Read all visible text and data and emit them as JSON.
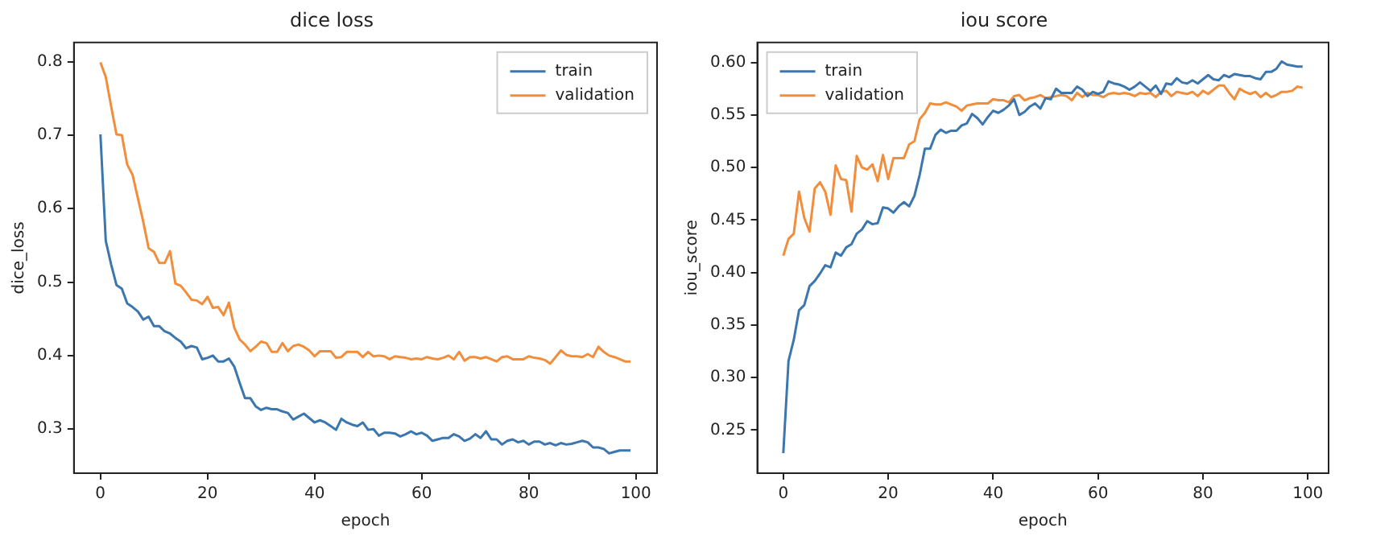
{
  "chart_data": [
    {
      "type": "line",
      "title": "dice loss",
      "xlabel": "epoch",
      "ylabel": "dice_loss",
      "legend": "top right",
      "grid": false,
      "marker": "none",
      "line_style": "solid",
      "x": [
        0,
        1,
        2,
        3,
        4,
        5,
        6,
        7,
        8,
        9,
        10,
        11,
        12,
        13,
        14,
        15,
        16,
        17,
        18,
        19,
        20,
        21,
        22,
        23,
        24,
        25,
        26,
        27,
        28,
        29,
        30,
        31,
        32,
        33,
        34,
        35,
        36,
        37,
        38,
        39,
        40,
        41,
        42,
        43,
        44,
        45,
        46,
        47,
        48,
        49,
        50,
        51,
        52,
        53,
        54,
        55,
        56,
        57,
        58,
        59,
        60,
        61,
        62,
        63,
        64,
        65,
        66,
        67,
        68,
        69,
        70,
        71,
        72,
        73,
        74,
        75,
        76,
        77,
        78,
        79,
        80,
        81,
        82,
        83,
        84,
        85,
        86,
        87,
        88,
        89,
        90,
        91,
        92,
        93,
        94,
        95,
        96,
        97,
        98,
        99
      ],
      "xlim": [
        -4.95,
        103.95
      ],
      "xticks": [
        0,
        20,
        40,
        60,
        80,
        100
      ],
      "ylim": [
        0.24,
        0.826
      ],
      "yticks": [
        0.3,
        0.4,
        0.5,
        0.6,
        0.7,
        0.8
      ],
      "series": [
        {
          "name": "train",
          "color": "#3c76af",
          "values": [
            0.701,
            0.556,
            0.524,
            0.496,
            0.491,
            0.471,
            0.466,
            0.46,
            0.449,
            0.453,
            0.44,
            0.44,
            0.433,
            0.43,
            0.424,
            0.419,
            0.41,
            0.413,
            0.411,
            0.395,
            0.397,
            0.4,
            0.392,
            0.392,
            0.396,
            0.385,
            0.363,
            0.342,
            0.342,
            0.331,
            0.326,
            0.329,
            0.327,
            0.327,
            0.324,
            0.322,
            0.313,
            0.317,
            0.321,
            0.315,
            0.309,
            0.312,
            0.309,
            0.304,
            0.299,
            0.314,
            0.309,
            0.306,
            0.304,
            0.309,
            0.299,
            0.3,
            0.291,
            0.295,
            0.295,
            0.294,
            0.29,
            0.293,
            0.297,
            0.293,
            0.295,
            0.291,
            0.284,
            0.286,
            0.288,
            0.288,
            0.293,
            0.29,
            0.284,
            0.287,
            0.293,
            0.288,
            0.297,
            0.286,
            0.286,
            0.279,
            0.284,
            0.286,
            0.282,
            0.284,
            0.279,
            0.283,
            0.283,
            0.279,
            0.281,
            0.278,
            0.281,
            0.279,
            0.28,
            0.282,
            0.284,
            0.282,
            0.275,
            0.275,
            0.273,
            0.267,
            0.269,
            0.271,
            0.271,
            0.271
          ]
        },
        {
          "name": "validation",
          "color": "#f28e3b",
          "values": [
            0.799,
            0.779,
            0.739,
            0.701,
            0.7,
            0.66,
            0.646,
            0.614,
            0.582,
            0.546,
            0.541,
            0.526,
            0.526,
            0.542,
            0.498,
            0.495,
            0.486,
            0.476,
            0.475,
            0.47,
            0.48,
            0.465,
            0.466,
            0.455,
            0.472,
            0.438,
            0.422,
            0.415,
            0.406,
            0.412,
            0.419,
            0.417,
            0.405,
            0.405,
            0.417,
            0.406,
            0.413,
            0.415,
            0.412,
            0.407,
            0.399,
            0.406,
            0.406,
            0.406,
            0.397,
            0.398,
            0.405,
            0.405,
            0.405,
            0.398,
            0.405,
            0.399,
            0.4,
            0.399,
            0.395,
            0.399,
            0.398,
            0.397,
            0.395,
            0.396,
            0.395,
            0.398,
            0.396,
            0.395,
            0.397,
            0.4,
            0.395,
            0.405,
            0.393,
            0.398,
            0.398,
            0.396,
            0.398,
            0.395,
            0.392,
            0.398,
            0.399,
            0.395,
            0.395,
            0.395,
            0.399,
            0.397,
            0.396,
            0.394,
            0.389,
            0.398,
            0.407,
            0.401,
            0.399,
            0.399,
            0.398,
            0.402,
            0.398,
            0.412,
            0.405,
            0.4,
            0.398,
            0.395,
            0.392,
            0.392
          ]
        }
      ]
    },
    {
      "type": "line",
      "title": "iou score",
      "xlabel": "epoch",
      "ylabel": "iou_score",
      "legend": "top left",
      "grid": false,
      "marker": "none",
      "line_style": "solid",
      "x": [
        0,
        1,
        2,
        3,
        4,
        5,
        6,
        7,
        8,
        9,
        10,
        11,
        12,
        13,
        14,
        15,
        16,
        17,
        18,
        19,
        20,
        21,
        22,
        23,
        24,
        25,
        26,
        27,
        28,
        29,
        30,
        31,
        32,
        33,
        34,
        35,
        36,
        37,
        38,
        39,
        40,
        41,
        42,
        43,
        44,
        45,
        46,
        47,
        48,
        49,
        50,
        51,
        52,
        53,
        54,
        55,
        56,
        57,
        58,
        59,
        60,
        61,
        62,
        63,
        64,
        65,
        66,
        67,
        68,
        69,
        70,
        71,
        72,
        73,
        74,
        75,
        76,
        77,
        78,
        79,
        80,
        81,
        82,
        83,
        84,
        85,
        86,
        87,
        88,
        89,
        90,
        91,
        92,
        93,
        94,
        95,
        96,
        97,
        98,
        99
      ],
      "xlim": [
        -4.95,
        103.95
      ],
      "xticks": [
        0,
        20,
        40,
        60,
        80,
        100
      ],
      "ylim": [
        0.209,
        0.619
      ],
      "yticks": [
        0.25,
        {
          "value": 0.3,
          "label": "0.30"
        },
        0.35,
        {
          "value": 0.4,
          "label": "0.40"
        },
        0.45,
        {
          "value": 0.5,
          "label": "0.50"
        },
        0.55,
        {
          "value": 0.6,
          "label": "0.60"
        }
      ],
      "series": [
        {
          "name": "train",
          "color": "#3c76af",
          "values": [
            0.228,
            0.316,
            0.336,
            0.364,
            0.369,
            0.387,
            0.392,
            0.399,
            0.407,
            0.405,
            0.419,
            0.416,
            0.424,
            0.427,
            0.437,
            0.441,
            0.449,
            0.446,
            0.447,
            0.462,
            0.461,
            0.457,
            0.463,
            0.467,
            0.463,
            0.473,
            0.493,
            0.518,
            0.518,
            0.531,
            0.536,
            0.533,
            0.535,
            0.535,
            0.54,
            0.542,
            0.551,
            0.547,
            0.541,
            0.548,
            0.554,
            0.552,
            0.555,
            0.559,
            0.565,
            0.55,
            0.553,
            0.558,
            0.561,
            0.556,
            0.566,
            0.565,
            0.575,
            0.571,
            0.571,
            0.571,
            0.577,
            0.574,
            0.568,
            0.572,
            0.57,
            0.572,
            0.582,
            0.58,
            0.579,
            0.577,
            0.574,
            0.577,
            0.581,
            0.577,
            0.573,
            0.578,
            0.57,
            0.58,
            0.579,
            0.585,
            0.581,
            0.58,
            0.583,
            0.58,
            0.584,
            0.588,
            0.584,
            0.583,
            0.588,
            0.586,
            0.589,
            0.588,
            0.587,
            0.587,
            0.585,
            0.584,
            0.591,
            0.591,
            0.594,
            0.601,
            0.598,
            0.597,
            0.596,
            0.596
          ]
        },
        {
          "name": "validation",
          "color": "#f28e3b",
          "values": [
            0.416,
            0.432,
            0.437,
            0.477,
            0.452,
            0.439,
            0.48,
            0.486,
            0.477,
            0.455,
            0.502,
            0.489,
            0.488,
            0.458,
            0.511,
            0.5,
            0.498,
            0.503,
            0.487,
            0.512,
            0.489,
            0.509,
            0.509,
            0.509,
            0.522,
            0.525,
            0.546,
            0.552,
            0.561,
            0.56,
            0.56,
            0.562,
            0.56,
            0.558,
            0.554,
            0.559,
            0.56,
            0.561,
            0.561,
            0.561,
            0.565,
            0.564,
            0.564,
            0.562,
            0.568,
            0.569,
            0.564,
            0.566,
            0.567,
            0.569,
            0.566,
            0.567,
            0.568,
            0.569,
            0.568,
            0.564,
            0.571,
            0.567,
            0.571,
            0.569,
            0.569,
            0.567,
            0.57,
            0.571,
            0.57,
            0.571,
            0.57,
            0.568,
            0.571,
            0.57,
            0.571,
            0.567,
            0.572,
            0.573,
            0.568,
            0.572,
            0.571,
            0.57,
            0.572,
            0.568,
            0.573,
            0.57,
            0.574,
            0.578,
            0.578,
            0.571,
            0.565,
            0.575,
            0.572,
            0.57,
            0.572,
            0.567,
            0.571,
            0.567,
            0.569,
            0.572,
            0.572,
            0.573,
            0.577,
            0.576
          ]
        }
      ]
    }
  ]
}
